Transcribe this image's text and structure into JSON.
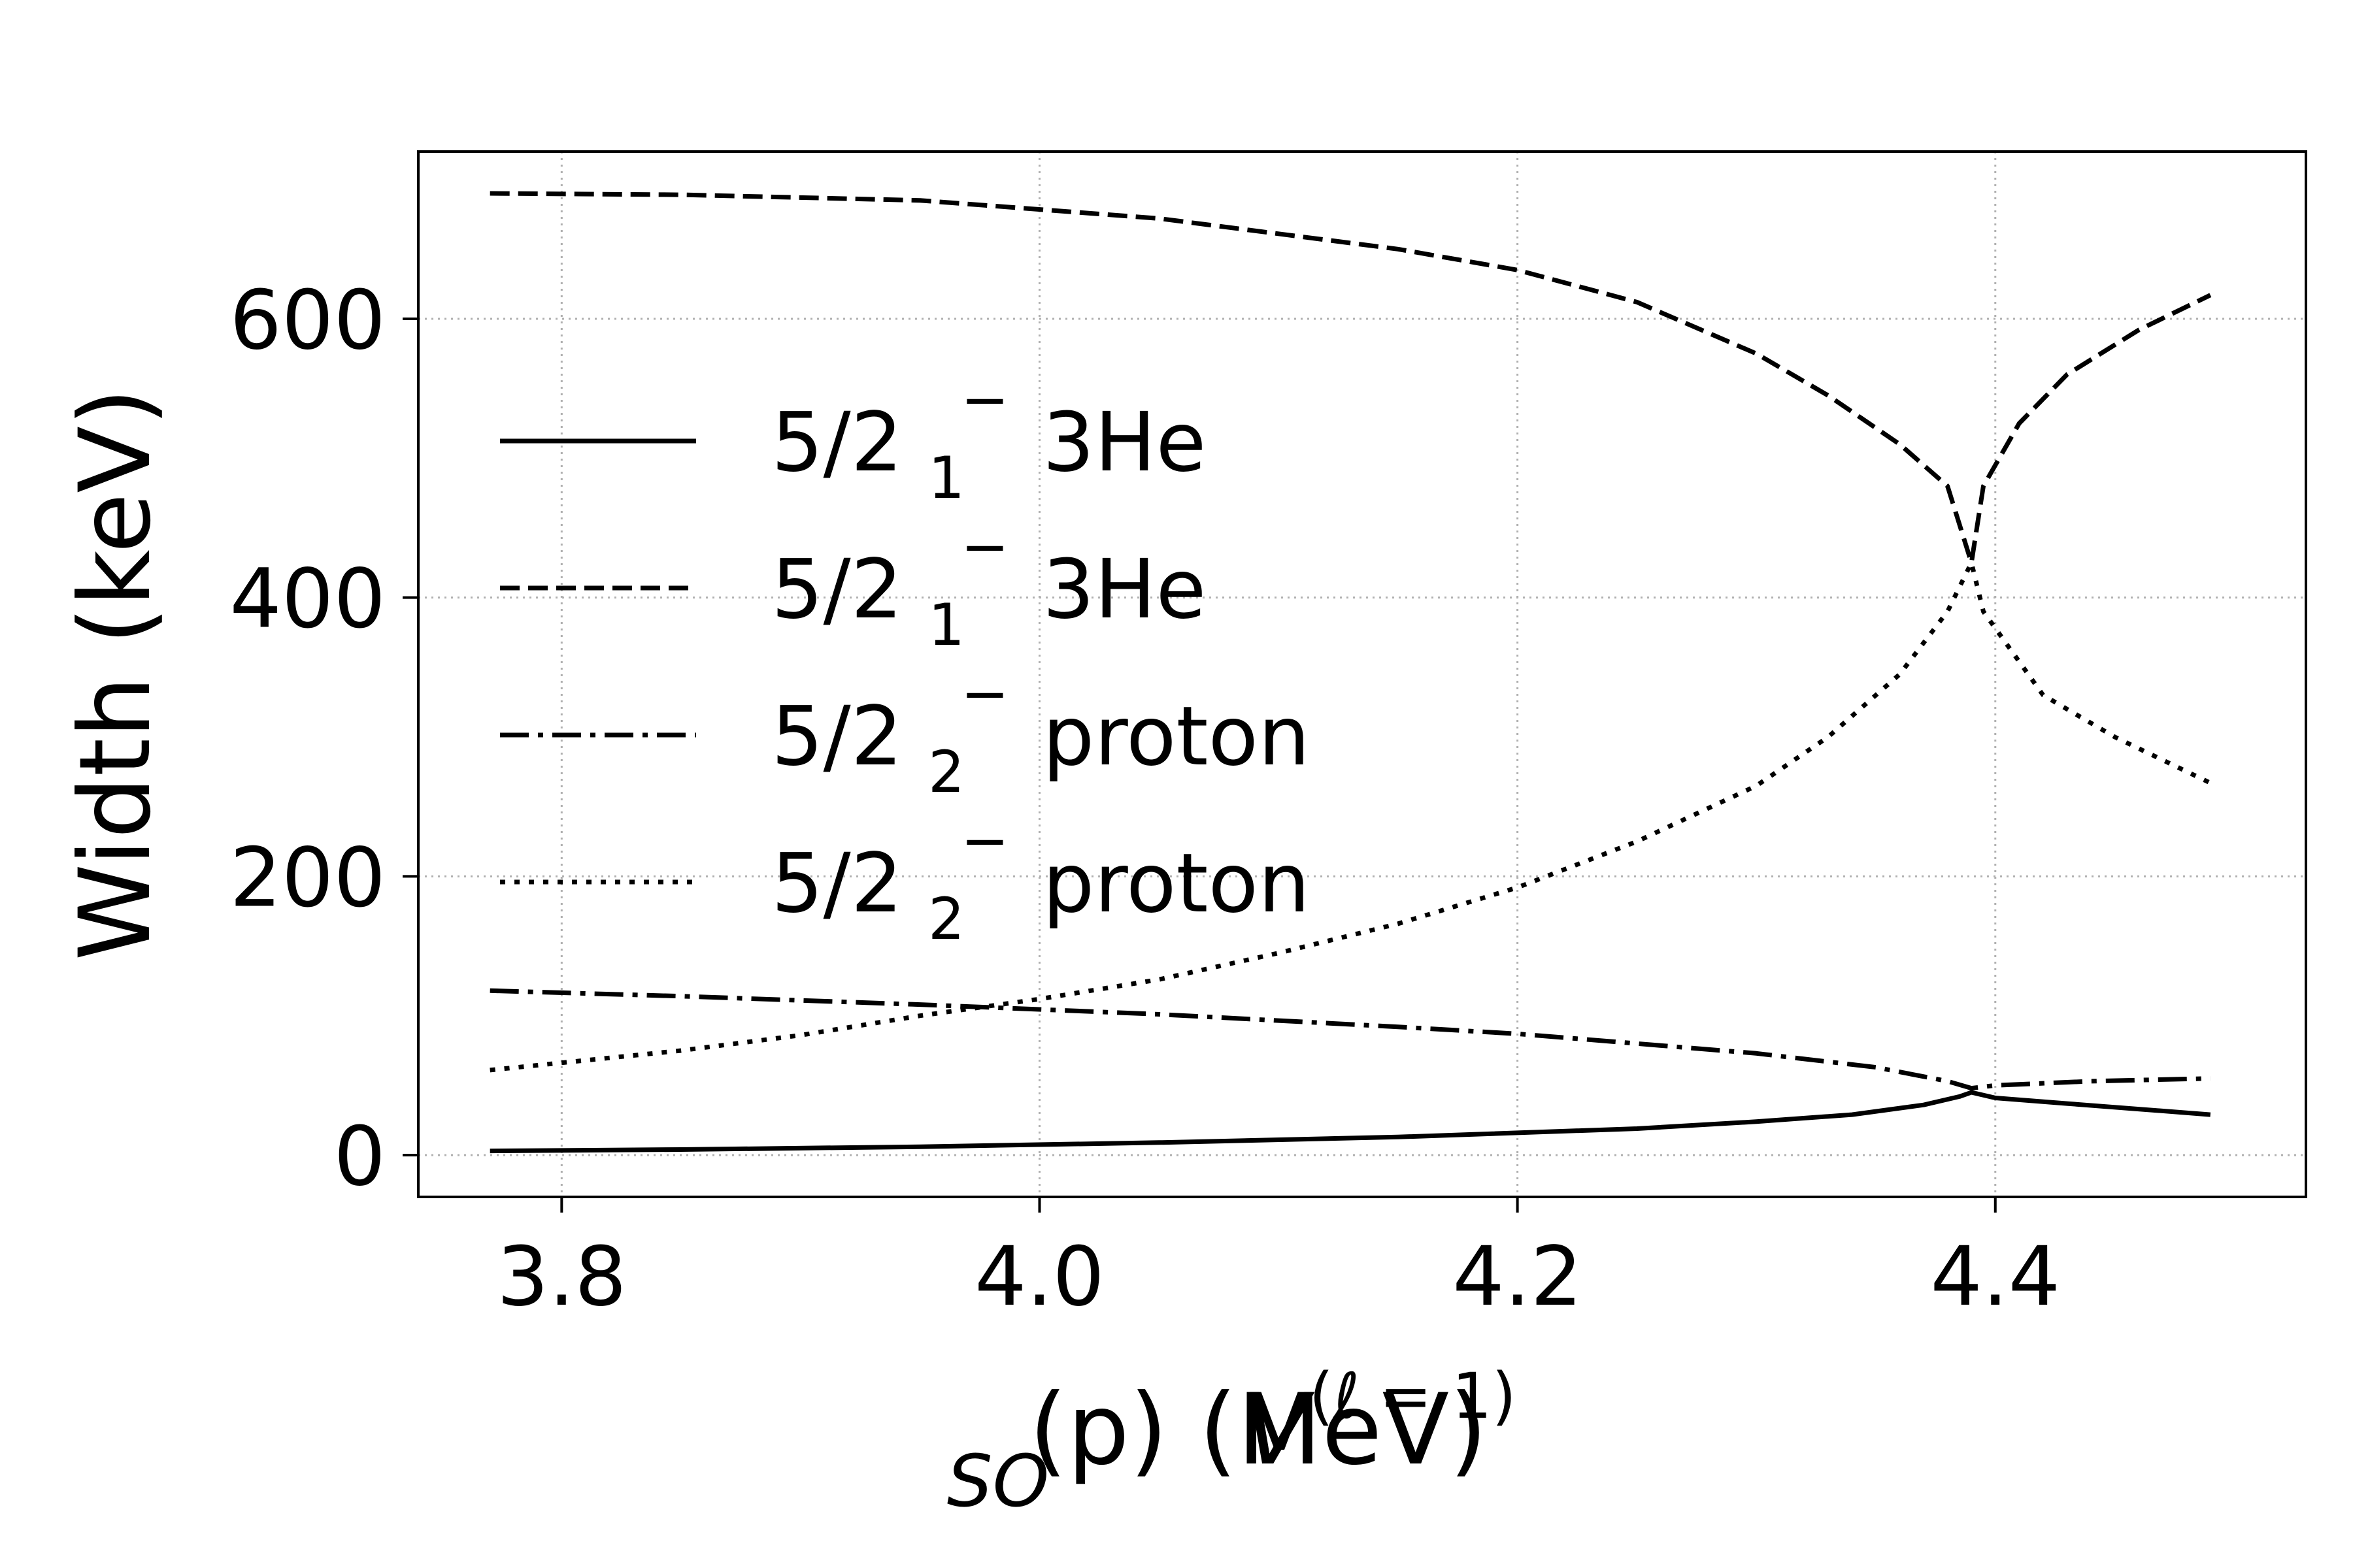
{
  "chart_data": {
    "type": "line",
    "xlabel": {
      "base": "V",
      "superscript": "(ℓ = 1)",
      "subscript": "SO",
      "rest": "(p) (MeV)"
    },
    "ylabel": "Width (keV)",
    "xlim": [
      3.74,
      4.53
    ],
    "ylim": [
      -30,
      720
    ],
    "xticks": [
      3.8,
      4.0,
      4.2,
      4.4
    ],
    "xtick_labels": [
      "3.8",
      "4.0",
      "4.2",
      "4.4"
    ],
    "yticks": [
      0,
      200,
      400,
      600
    ],
    "ytick_labels": [
      "0",
      "200",
      "400",
      "600"
    ],
    "grid": true,
    "legend_position": "center-left",
    "series": [
      {
        "name": "5/2₁⁻ 3He",
        "legend": {
          "base": "5/2",
          "sub": "1",
          "sup": "−",
          "channel": "3He"
        },
        "style": "solid",
        "x": [
          3.77,
          3.85,
          3.95,
          4.05,
          4.15,
          4.25,
          4.3,
          4.34,
          4.37,
          4.385,
          4.39,
          4.4,
          4.43,
          4.46,
          4.49
        ],
        "y": [
          3,
          4,
          6,
          9,
          13,
          19,
          24,
          29,
          36,
          42,
          45,
          41,
          37,
          33,
          29
        ]
      },
      {
        "name": "5/2₁⁻ 3He",
        "legend": {
          "base": "5/2",
          "sub": "1",
          "sup": "−",
          "channel": "3He"
        },
        "style": "dashed",
        "x": [
          3.77,
          3.85,
          3.95,
          4.05,
          4.15,
          4.2,
          4.25,
          4.3,
          4.33,
          4.36,
          4.38,
          4.39,
          4.395,
          4.41,
          4.43,
          4.46,
          4.49
        ],
        "y": [
          690,
          689,
          685,
          672,
          650,
          635,
          612,
          575,
          545,
          510,
          480,
          425,
          480,
          525,
          560,
          592,
          617
        ]
      },
      {
        "name": "5/2₂⁻ proton",
        "legend": {
          "base": "5/2",
          "sub": "2",
          "sup": "−",
          "channel": "proton"
        },
        "style": "dashdot",
        "x": [
          3.77,
          3.85,
          3.95,
          4.05,
          4.15,
          4.2,
          4.25,
          4.3,
          4.35,
          4.38,
          4.39,
          4.4,
          4.44,
          4.49
        ],
        "y": [
          118,
          114,
          108,
          101,
          92,
          87,
          80,
          73,
          63,
          53,
          48,
          50,
          53,
          55
        ]
      },
      {
        "name": "5/2₂⁻ proton",
        "legend": {
          "base": "5/2",
          "sub": "2",
          "sup": "−",
          "channel": "proton"
        },
        "style": "dotted",
        "x": [
          3.77,
          3.85,
          3.9,
          3.95,
          4.0,
          4.05,
          4.1,
          4.15,
          4.2,
          4.25,
          4.3,
          4.33,
          4.36,
          4.38,
          4.39,
          4.395,
          4.42,
          4.45,
          4.49
        ],
        "y": [
          61,
          75,
          86,
          100,
          112,
          126,
          145,
          166,
          192,
          225,
          265,
          300,
          345,
          390,
          425,
          390,
          330,
          300,
          267
        ]
      }
    ]
  }
}
